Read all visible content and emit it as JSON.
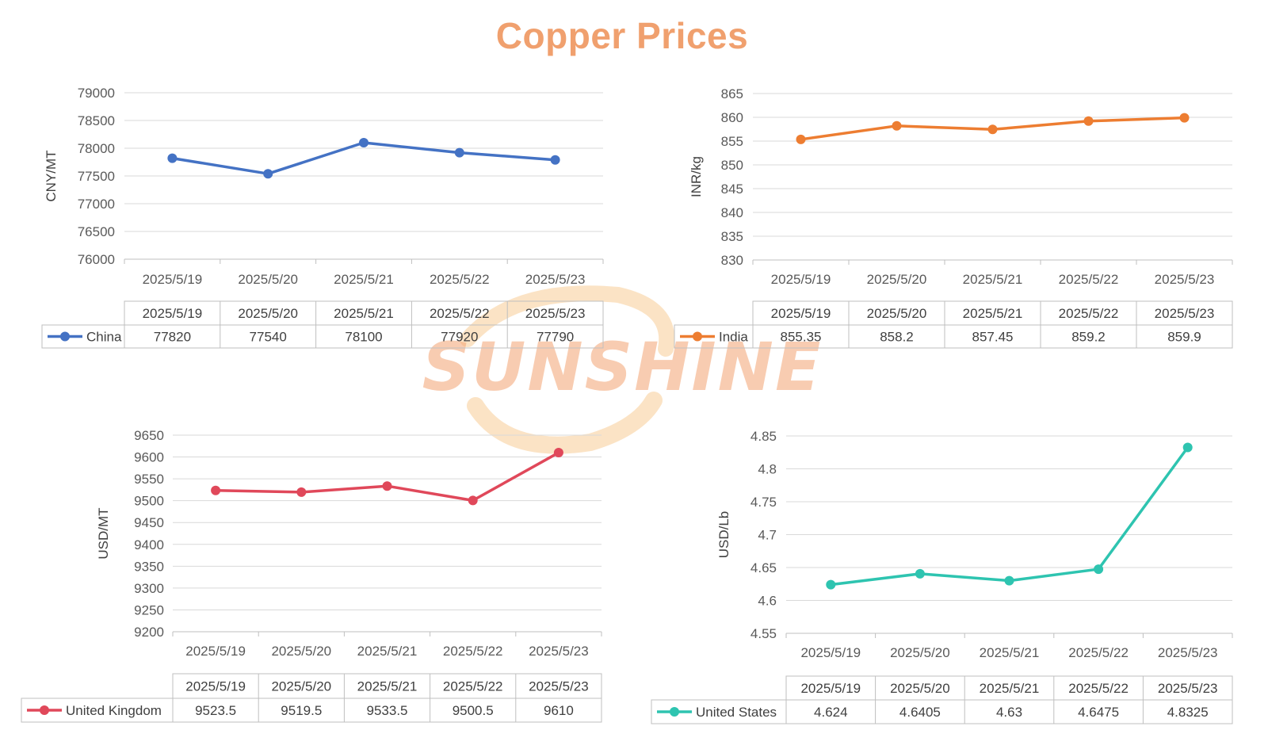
{
  "title": "Copper Prices",
  "watermark": "SUNSHINE",
  "colors": {
    "title": "#f0a06e",
    "watermark_text": "#f4a472",
    "watermark_ring": "#f7c27e"
  },
  "chart_data": [
    {
      "type": "line",
      "categories": [
        "2025/5/19",
        "2025/5/20",
        "2025/5/21",
        "2025/5/22",
        "2025/5/23"
      ],
      "series": [
        {
          "name": "China",
          "values": [
            77820,
            77540,
            78100,
            77920,
            77790
          ],
          "color": "#4472c4"
        }
      ],
      "table_values": [
        "77820",
        "77540",
        "78100",
        "77920",
        "77790"
      ],
      "ylabel": "CNY/MT",
      "ylim": [
        76000,
        79000
      ],
      "yticks": [
        76000,
        76500,
        77000,
        77500,
        78000,
        78500,
        79000
      ],
      "ytick_labels": [
        "76000",
        "76500",
        "77000",
        "77500",
        "78000",
        "78500",
        "79000"
      ],
      "grid": true,
      "legend": "data-table"
    },
    {
      "type": "line",
      "categories": [
        "2025/5/19",
        "2025/5/20",
        "2025/5/21",
        "2025/5/22",
        "2025/5/23"
      ],
      "series": [
        {
          "name": "India",
          "values": [
            855.35,
            858.2,
            857.45,
            859.2,
            859.9
          ],
          "color": "#ed7d31"
        }
      ],
      "table_values": [
        "855.35",
        "858.2",
        "857.45",
        "859.2",
        "859.9"
      ],
      "ylabel": "INR/kg",
      "ylim": [
        830,
        865
      ],
      "yticks": [
        830,
        835,
        840,
        845,
        850,
        855,
        860,
        865
      ],
      "ytick_labels": [
        "830",
        "835",
        "840",
        "845",
        "850",
        "855",
        "860",
        "865"
      ],
      "grid": true,
      "legend": "data-table"
    },
    {
      "type": "line",
      "categories": [
        "2025/5/19",
        "2025/5/20",
        "2025/5/21",
        "2025/5/22",
        "2025/5/23"
      ],
      "series": [
        {
          "name": "United Kingdom",
          "values": [
            9523.5,
            9519.5,
            9533.5,
            9500.5,
            9610
          ],
          "color": "#e0485a"
        }
      ],
      "table_values": [
        "9523.5",
        "9519.5",
        "9533.5",
        "9500.5",
        "9610"
      ],
      "ylabel": "USD/MT",
      "ylim": [
        9200,
        9650
      ],
      "yticks": [
        9200,
        9250,
        9300,
        9350,
        9400,
        9450,
        9500,
        9550,
        9600,
        9650
      ],
      "ytick_labels": [
        "9200",
        "9250",
        "9300",
        "9350",
        "9400",
        "9450",
        "9500",
        "9550",
        "9600",
        "9650"
      ],
      "grid": true,
      "legend": "data-table"
    },
    {
      "type": "line",
      "categories": [
        "2025/5/19",
        "2025/5/20",
        "2025/5/21",
        "2025/5/22",
        "2025/5/23"
      ],
      "series": [
        {
          "name": "United States",
          "values": [
            4.624,
            4.6405,
            4.63,
            4.6475,
            4.8325
          ],
          "color": "#2ec4b0"
        }
      ],
      "table_values": [
        "4.624",
        "4.6405",
        "4.63",
        "4.6475",
        "4.8325"
      ],
      "ylabel": "USD/Lb",
      "ylim": [
        4.55,
        4.85
      ],
      "yticks": [
        4.55,
        4.6,
        4.65,
        4.7,
        4.75,
        4.8,
        4.85
      ],
      "ytick_labels": [
        "4.55",
        "4.6",
        "4.65",
        "4.7",
        "4.75",
        "4.8",
        "4.85"
      ],
      "grid": true,
      "legend": "data-table"
    }
  ]
}
